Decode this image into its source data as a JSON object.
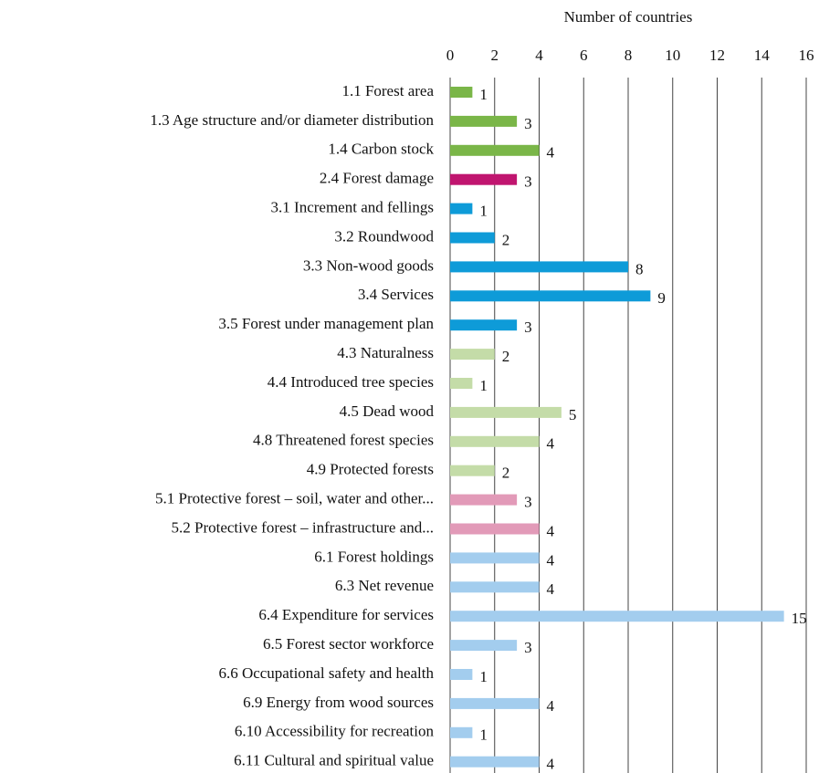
{
  "chart_data": {
    "type": "barh",
    "xlabel": "Number of countries",
    "categories": [
      "1.1 Forest area",
      "1.3 Age structure and/or diameter distribution",
      "1.4 Carbon stock",
      "2.4 Forest damage",
      "3.1 Increment and fellings",
      "3.2 Roundwood",
      "3.3 Non-wood goods",
      "3.4 Services",
      "3.5 Forest under management plan",
      "4.3 Naturalness",
      "4.4 Introduced tree species",
      "4.5 Dead wood",
      "4.8 Threatened forest species",
      "4.9 Protected forests",
      "5.1 Protective forest – soil, water and other...",
      "5.2 Protective forest – infrastructure and...",
      "6.1 Forest holdings",
      "6.3 Net revenue",
      "6.4 Expenditure for services",
      "6.5 Forest sector workforce",
      "6.6 Occupational safety and health",
      "6.9 Energy from wood sources",
      "6.10 Accessibility for recreation",
      "6.11 Cultural and spiritual value"
    ],
    "values": [
      1,
      3,
      4,
      3,
      1,
      2,
      8,
      9,
      3,
      2,
      1,
      5,
      4,
      2,
      3,
      4,
      4,
      4,
      15,
      3,
      1,
      4,
      1,
      4
    ],
    "colors": [
      "#7ab648",
      "#7ab648",
      "#7ab648",
      "#c0156f",
      "#0e9bd8",
      "#0e9bd8",
      "#0e9bd8",
      "#0e9bd8",
      "#0e9bd8",
      "#c4dca8",
      "#c4dca8",
      "#c4dca8",
      "#c4dca8",
      "#c4dca8",
      "#e29ab8",
      "#e29ab8",
      "#a3cdee",
      "#a3cdee",
      "#a3cdee",
      "#a3cdee",
      "#a3cdee",
      "#a3cdee",
      "#a3cdee",
      "#a3cdee"
    ],
    "xlim": [
      0,
      16
    ],
    "xticks": [
      0,
      2,
      4,
      6,
      8,
      10,
      12,
      14,
      16
    ],
    "grid": true
  }
}
